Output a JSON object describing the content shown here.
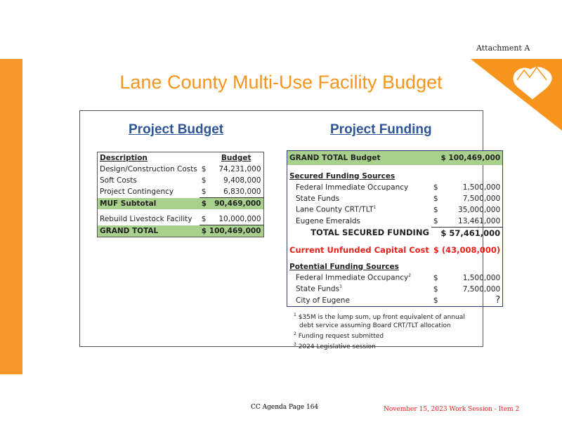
{
  "header": {
    "attachment": "Attachment A",
    "title": "Lane County Multi-Use Facility Budget"
  },
  "colors": {
    "accent": "#f7941d",
    "highlight": "#a9d18e",
    "negative": "#e8201c",
    "heading": "#2f5597"
  },
  "budget": {
    "heading": "Project Budget",
    "col_desc": "Description",
    "col_budget": "Budget",
    "rows": [
      {
        "label": "Design/Construction Costs",
        "cur": "$",
        "amount": "74,231,000"
      },
      {
        "label": "Soft Costs",
        "cur": "$",
        "amount": "9,408,000"
      },
      {
        "label": "Project Contingency",
        "cur": "$",
        "amount": "6,830,000"
      }
    ],
    "subtotal": {
      "label": "MUF Subtotal",
      "cur": "$",
      "amount": "90,469,000"
    },
    "extra": {
      "label": "Rebuild Livestock Facility",
      "cur": "$",
      "amount": "10,000,000"
    },
    "total": {
      "label": "GRAND TOTAL",
      "amount": "$ 100,469,000"
    }
  },
  "funding": {
    "heading": "Project Funding",
    "grand_label": "GRAND TOTAL Budget",
    "grand_amount": "$ 100,469,000",
    "secured_heading": "Secured Funding Sources",
    "secured": [
      {
        "label": "Federal Immediate Occupancy",
        "sup": "",
        "cur": "$",
        "amount": "1,500,000"
      },
      {
        "label": "State Funds",
        "sup": "",
        "cur": "$",
        "amount": "7,500,000"
      },
      {
        "label": "Lane County CRT/TLT",
        "sup": "1",
        "cur": "$",
        "amount": "35,000,000"
      },
      {
        "label": "Eugene Emeralds",
        "sup": "",
        "cur": "$",
        "amount": "13,461,000"
      }
    ],
    "total_secured_label": "TOTAL SECURED FUNDING",
    "total_secured_amount": "$  57,461,000",
    "unfunded_label": "Current Unfunded Capital Cost",
    "unfunded_amount": "$  (43,008,000)",
    "potential_heading": "Potential Funding Sources",
    "potential": [
      {
        "label": "Federal Immediate Occupancy",
        "sup": "2",
        "cur": "$",
        "amount": "1,500,000"
      },
      {
        "label": "State Funds",
        "sup": "3",
        "cur": "$",
        "amount": "7,500,000"
      },
      {
        "label": "City of Eugene",
        "sup": "",
        "cur": "$",
        "amount": "?"
      }
    ],
    "footnotes": [
      {
        "n": "1",
        "text": "$35M is the lump sum, up front equivalent of annual debt service assuming Board CRT/TLT allocation"
      },
      {
        "n": "2",
        "text": "Funding request submitted"
      },
      {
        "n": "3",
        "text": "2024 Legislative session"
      }
    ]
  },
  "footer": {
    "page": "CC Agenda Page 164",
    "session": "November 15, 2023 Work Session - Item 2"
  }
}
